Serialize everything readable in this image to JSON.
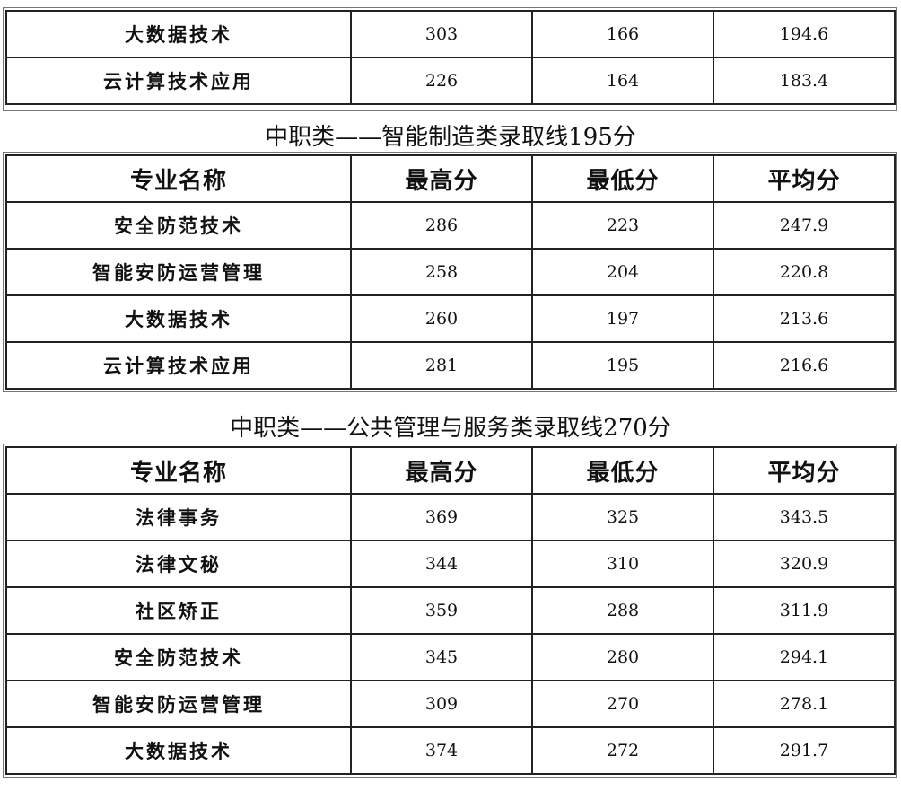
{
  "headers": [
    "专业名称",
    "最高分",
    "最低分",
    "平均分"
  ],
  "tables": [
    {
      "title": "",
      "rows": [
        [
          "大数据技术",
          "303",
          "166",
          "194.6"
        ],
        [
          "云计算技术应用",
          "226",
          "164",
          "183.4"
        ]
      ]
    },
    {
      "title": "中职类——智能制造类录取线195分",
      "rows": [
        [
          "安全防范技术",
          "286",
          "223",
          "247.9"
        ],
        [
          "智能安防运营管理",
          "258",
          "204",
          "220.8"
        ],
        [
          "大数据技术",
          "260",
          "197",
          "213.6"
        ],
        [
          "云计算技术应用",
          "281",
          "195",
          "216.6"
        ]
      ]
    },
    {
      "title": "中职类——公共管理与服务类录取线270分",
      "rows": [
        [
          "法律事务",
          "369",
          "325",
          "343.5"
        ],
        [
          "法律文秘",
          "344",
          "310",
          "320.9"
        ],
        [
          "社区矫正",
          "359",
          "288",
          "311.9"
        ],
        [
          "安全防范技术",
          "345",
          "280",
          "294.1"
        ],
        [
          "智能安防运营管理",
          "309",
          "270",
          "278.1"
        ],
        [
          "大数据技术",
          "374",
          "272",
          "291.7"
        ]
      ]
    }
  ]
}
